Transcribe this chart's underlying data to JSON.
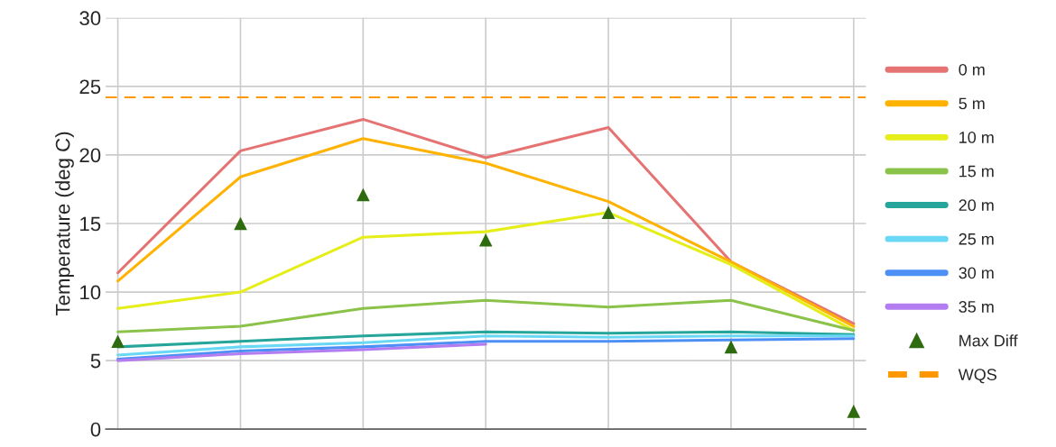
{
  "chart_data": {
    "type": "line",
    "ylabel": "Temperature (deg C)",
    "categories": [
      null,
      null,
      null,
      null,
      null,
      null,
      null
    ],
    "series": [
      {
        "name": "0 m",
        "color": "#e57373",
        "values": [
          11.4,
          20.3,
          22.6,
          19.8,
          22.0,
          12.2,
          7.7
        ]
      },
      {
        "name": "5 m",
        "color": "#ffb300",
        "values": [
          10.8,
          18.4,
          21.2,
          19.4,
          16.6,
          12.2,
          7.5
        ]
      },
      {
        "name": "10 m",
        "color": "#e6ee1a",
        "values": [
          8.8,
          10.0,
          14.0,
          14.4,
          15.8,
          12.0,
          7.2
        ]
      },
      {
        "name": "15 m",
        "color": "#8bc34a",
        "values": [
          7.1,
          7.5,
          8.8,
          9.4,
          8.9,
          9.4,
          7.2
        ]
      },
      {
        "name": "20 m",
        "color": "#26a69a",
        "values": [
          6.0,
          6.4,
          6.8,
          7.1,
          7.0,
          7.1,
          6.9
        ]
      },
      {
        "name": "25 m",
        "color": "#6ad8f5",
        "values": [
          5.4,
          6.0,
          6.3,
          6.8,
          6.7,
          6.8,
          6.8
        ]
      },
      {
        "name": "30 m",
        "color": "#4c8ff5",
        "values": [
          5.1,
          5.7,
          6.0,
          6.4,
          6.4,
          6.5,
          6.6
        ]
      },
      {
        "name": "35 m",
        "color": "#b37cf0",
        "values": [
          5.0,
          5.5,
          5.8,
          6.2,
          null,
          null,
          null
        ]
      },
      {
        "name": "Max Diff",
        "type": "scatter",
        "marker": "triangle",
        "color": "#2e6b0e",
        "values": [
          6.4,
          15.0,
          17.1,
          13.8,
          15.8,
          6.0,
          1.3
        ]
      }
    ],
    "ref_lines": [
      {
        "axis": "y",
        "value": 24.2,
        "label": "WQS",
        "color": "#ff9800",
        "line_style": "dashed"
      }
    ],
    "ylim": [
      0,
      30
    ],
    "yticks": [
      0,
      5,
      10,
      15,
      20,
      25,
      30
    ],
    "grid": true,
    "legend": "right",
    "tick_labels": "y"
  }
}
